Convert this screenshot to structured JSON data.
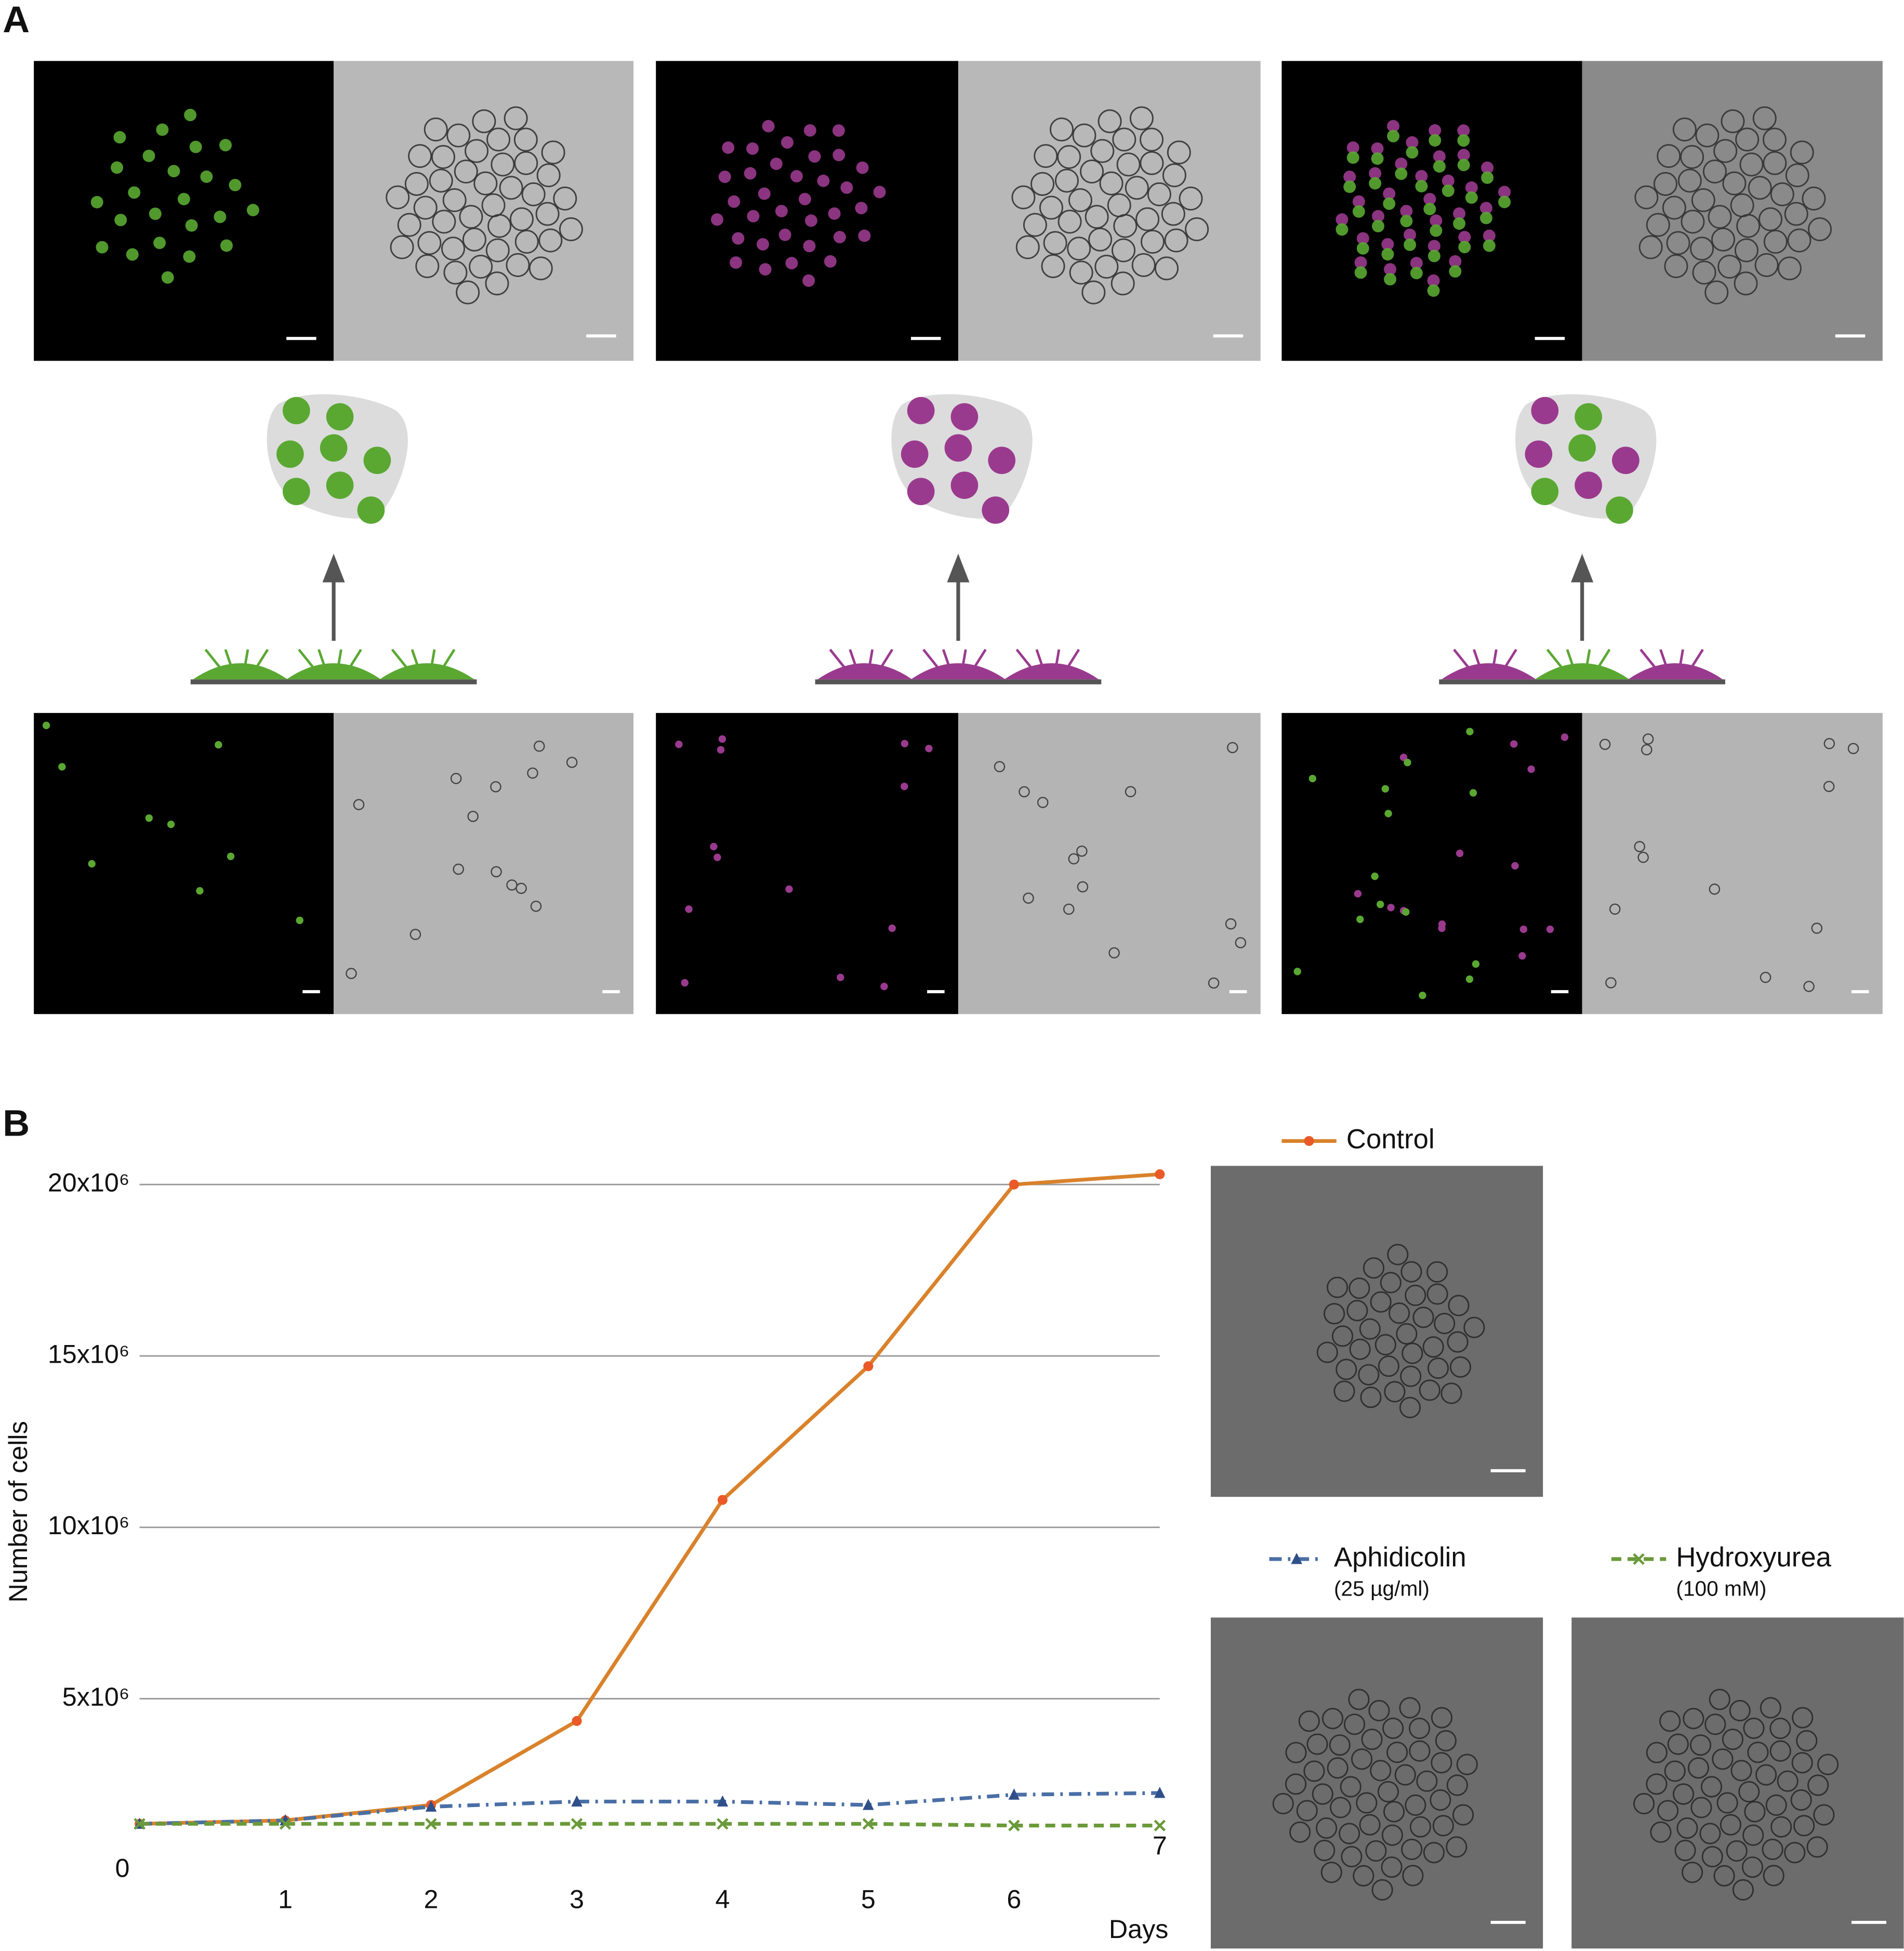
{
  "panel_labels": [
    "A",
    "B"
  ],
  "chart_data": {
    "type": "line",
    "y_label": "Number of cells",
    "x_label": "Days",
    "x": [
      0,
      1,
      2,
      3,
      4,
      5,
      6,
      7
    ],
    "xlim": [
      0,
      7
    ],
    "xticks": [
      1,
      2,
      3,
      4,
      5,
      6,
      7
    ],
    "ylim": [
      0,
      21000000
    ],
    "yticks": [
      0,
      {
        "value": 5000000,
        "label": "5x10⁶"
      },
      {
        "value": 10000000,
        "label": "10x10⁶"
      },
      {
        "value": 15000000,
        "label": "15x10⁶"
      },
      {
        "value": 20000000,
        "label": "20x10⁶"
      }
    ],
    "grid": true,
    "series": [
      {
        "name": "Control",
        "color": "#d9822b",
        "marker": "circle",
        "dash": "solid",
        "values": [
          1350000,
          1450000,
          1900000,
          4350000,
          10800000,
          14700000,
          20000000,
          20300000
        ]
      },
      {
        "name": "Aphidicolin",
        "concentration": "(25 µg/ml)",
        "color": "#4a6fa5",
        "marker": "triangle",
        "dash": "dash-dot",
        "values": [
          1350000,
          1450000,
          1850000,
          2000000,
          2000000,
          1900000,
          2200000,
          2250000
        ]
      },
      {
        "name": "Hydroxyurea",
        "concentration": "(100 mM)",
        "color": "#6a9a3a",
        "marker": "cross",
        "dash": "dashed",
        "values": [
          1350000,
          1350000,
          1350000,
          1350000,
          1350000,
          1350000,
          1300000,
          1300000
        ]
      }
    ]
  }
}
